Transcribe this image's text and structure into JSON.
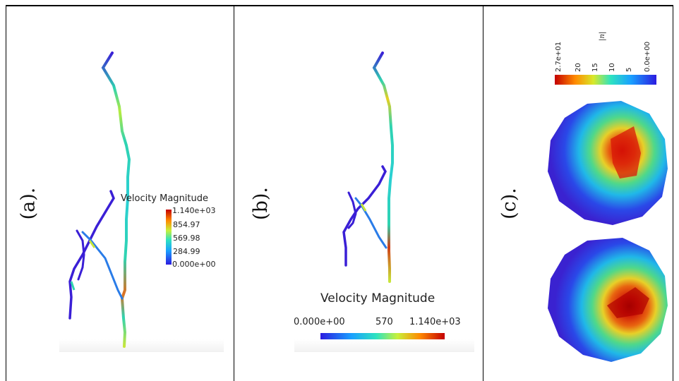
{
  "panels": {
    "a": {
      "label": "(a).",
      "legend_title": "Velocity Magnitude",
      "ticks": [
        "1.140e+03",
        "854.97",
        "569.98",
        "284.99",
        "0.000e+00"
      ]
    },
    "b": {
      "label": "(b).",
      "legend_title": "Velocity Magnitude",
      "ticks": [
        "0.000e+00",
        "570",
        "1.140e+03"
      ]
    },
    "c": {
      "label": "(c).",
      "legend_title": "|n|",
      "ticks": [
        "2.7e+01",
        "20",
        "15",
        "10",
        "5",
        "0.0e+00"
      ]
    }
  },
  "colors": {
    "jet_low": "#3a1fd6",
    "jet_mid": "#2fd3b0",
    "jet_high": "#c80000"
  }
}
